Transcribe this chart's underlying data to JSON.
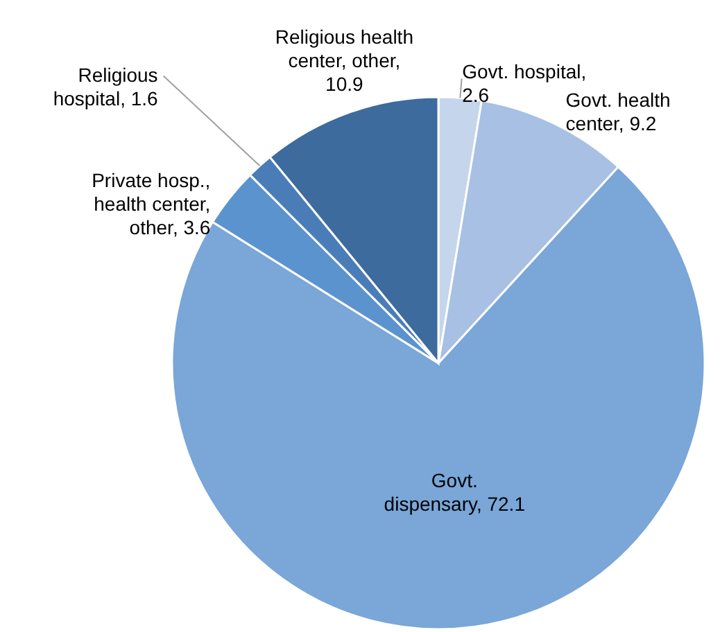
{
  "chart_data": {
    "type": "pie",
    "categories": [
      "Govt. hospital, 2.6",
      "Govt. health center, 9.2",
      "Govt. dispensary, 72.1",
      "Private hosp., health center, other, 3.6",
      "Religious hospital, 1.6",
      "Religious health center, other, 10.9"
    ],
    "values": [
      2.6,
      9.2,
      72.1,
      3.6,
      1.6,
      10.9
    ],
    "colors": [
      "#c5d5ec",
      "#a7c0e3",
      "#7aa6d8",
      "#5b93cf",
      "#4a7db8",
      "#3e6b9e"
    ]
  }
}
